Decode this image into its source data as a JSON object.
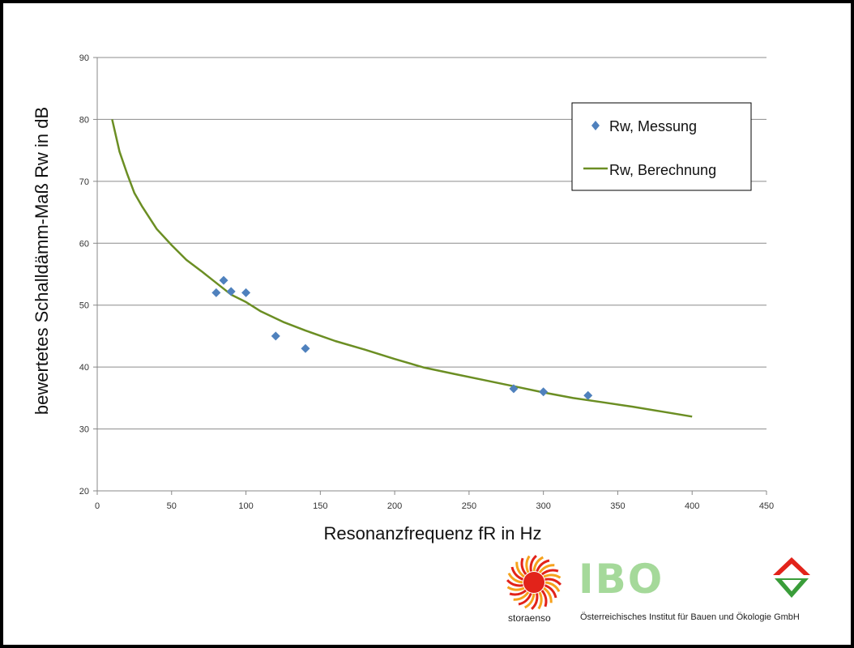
{
  "chart_data": {
    "type": "scatter",
    "xlabel": "Resonanzfrequenz fR in Hz",
    "ylabel": "bewertetes Schalldämm-Maß Rw in dB",
    "xlim": [
      0,
      450
    ],
    "ylim": [
      20,
      90
    ],
    "x_ticks": [
      0,
      50,
      100,
      150,
      200,
      250,
      300,
      350,
      400,
      450
    ],
    "y_ticks": [
      20,
      30,
      40,
      50,
      60,
      70,
      80,
      90
    ],
    "grid": "horizontal",
    "legend_position": "top-right",
    "series": [
      {
        "name": "Rw, Messung",
        "type": "scatter",
        "marker": "diamond",
        "color": "#4f81bd",
        "points": [
          {
            "x": 80,
            "y": 52
          },
          {
            "x": 85,
            "y": 54
          },
          {
            "x": 90,
            "y": 52.2
          },
          {
            "x": 100,
            "y": 52
          },
          {
            "x": 120,
            "y": 45
          },
          {
            "x": 140,
            "y": 43
          },
          {
            "x": 280,
            "y": 36.5
          },
          {
            "x": 300,
            "y": 36
          },
          {
            "x": 330,
            "y": 35.4
          }
        ]
      },
      {
        "name": "Rw, Berechnung",
        "type": "line",
        "color": "#6b8e23",
        "points": [
          {
            "x": 10,
            "y": 80
          },
          {
            "x": 15,
            "y": 74.8
          },
          {
            "x": 20,
            "y": 71.3
          },
          {
            "x": 25,
            "y": 68.1
          },
          {
            "x": 30,
            "y": 66.0
          },
          {
            "x": 40,
            "y": 62.3
          },
          {
            "x": 50,
            "y": 59.7
          },
          {
            "x": 60,
            "y": 57.3
          },
          {
            "x": 70,
            "y": 55.5
          },
          {
            "x": 80,
            "y": 53.6
          },
          {
            "x": 90,
            "y": 51.7
          },
          {
            "x": 100,
            "y": 50.5
          },
          {
            "x": 110,
            "y": 49.0
          },
          {
            "x": 125,
            "y": 47.3
          },
          {
            "x": 140,
            "y": 45.9
          },
          {
            "x": 160,
            "y": 44.2
          },
          {
            "x": 180,
            "y": 42.8
          },
          {
            "x": 200,
            "y": 41.3
          },
          {
            "x": 220,
            "y": 39.9
          },
          {
            "x": 240,
            "y": 38.9
          },
          {
            "x": 260,
            "y": 37.9
          },
          {
            "x": 280,
            "y": 36.9
          },
          {
            "x": 300,
            "y": 35.9
          },
          {
            "x": 320,
            "y": 35.0
          },
          {
            "x": 340,
            "y": 34.3
          },
          {
            "x": 360,
            "y": 33.6
          },
          {
            "x": 380,
            "y": 32.8
          },
          {
            "x": 400,
            "y": 32.0
          }
        ]
      }
    ]
  },
  "logos": {
    "storaenso_text": "storaenso",
    "ibo_text": "IBO",
    "ibo_subtitle": "Österreichisches Institut für Bauen und Ökologie GmbH"
  },
  "colors": {
    "measurement": "#4f81bd",
    "calculation": "#6b8e23",
    "grid": "#8c8c8c",
    "ibo_green": "#a5d99a",
    "stora_red": "#e2231a",
    "stora_orange": "#f6a21c"
  }
}
